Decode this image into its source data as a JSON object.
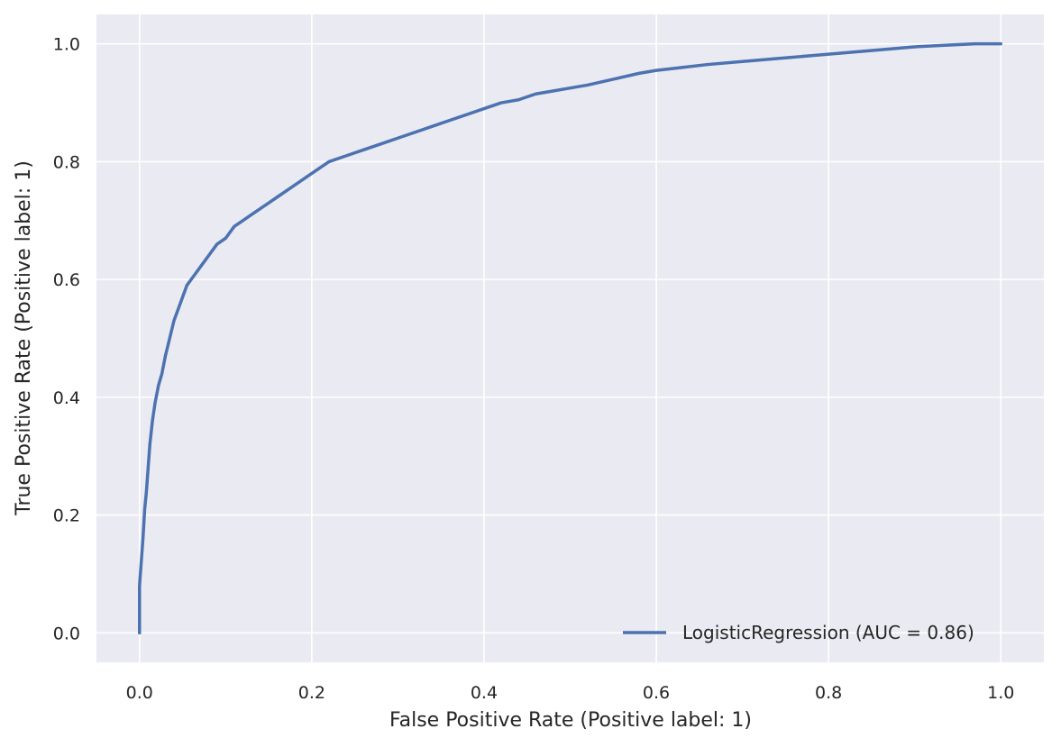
{
  "chart_data": {
    "type": "line",
    "xlabel": "False Positive Rate (Positive label: 1)",
    "ylabel": "True Positive Rate (Positive label: 1)",
    "xlim": [
      -0.05,
      1.05
    ],
    "ylim": [
      -0.05,
      1.05
    ],
    "xticks": [
      0.0,
      0.2,
      0.4,
      0.6,
      0.8,
      1.0
    ],
    "yticks": [
      0.0,
      0.2,
      0.4,
      0.6,
      0.8,
      1.0
    ],
    "xtick_labels": [
      "0.0",
      "0.2",
      "0.4",
      "0.6",
      "0.8",
      "1.0"
    ],
    "ytick_labels": [
      "0.0",
      "0.2",
      "0.4",
      "0.6",
      "0.8",
      "1.0"
    ],
    "grid": true,
    "legend_position": "lower-right",
    "background_color": "#eaeaf2",
    "grid_color": "#ffffff",
    "series": [
      {
        "name": "LogisticRegression (AUC = 0.86)",
        "color": "#4c72b0",
        "x": [
          0.0,
          0.0,
          0.002,
          0.004,
          0.006,
          0.008,
          0.01,
          0.012,
          0.015,
          0.018,
          0.022,
          0.026,
          0.03,
          0.035,
          0.04,
          0.045,
          0.05,
          0.055,
          0.06,
          0.065,
          0.07,
          0.075,
          0.08,
          0.085,
          0.09,
          0.1,
          0.11,
          0.12,
          0.13,
          0.14,
          0.15,
          0.16,
          0.18,
          0.2,
          0.21,
          0.22,
          0.24,
          0.26,
          0.28,
          0.3,
          0.32,
          0.34,
          0.36,
          0.38,
          0.4,
          0.42,
          0.44,
          0.46,
          0.48,
          0.5,
          0.52,
          0.55,
          0.58,
          0.6,
          0.63,
          0.66,
          0.7,
          0.74,
          0.78,
          0.82,
          0.86,
          0.9,
          0.94,
          0.97,
          1.0
        ],
        "y": [
          0.0,
          0.08,
          0.12,
          0.16,
          0.21,
          0.24,
          0.28,
          0.32,
          0.36,
          0.39,
          0.42,
          0.44,
          0.47,
          0.5,
          0.53,
          0.55,
          0.57,
          0.59,
          0.6,
          0.61,
          0.62,
          0.63,
          0.64,
          0.65,
          0.66,
          0.67,
          0.69,
          0.7,
          0.71,
          0.72,
          0.73,
          0.74,
          0.76,
          0.78,
          0.79,
          0.8,
          0.81,
          0.82,
          0.83,
          0.84,
          0.85,
          0.86,
          0.87,
          0.88,
          0.89,
          0.9,
          0.905,
          0.915,
          0.92,
          0.925,
          0.93,
          0.94,
          0.95,
          0.955,
          0.96,
          0.965,
          0.97,
          0.975,
          0.98,
          0.985,
          0.99,
          0.995,
          0.998,
          1.0,
          1.0
        ]
      }
    ]
  }
}
